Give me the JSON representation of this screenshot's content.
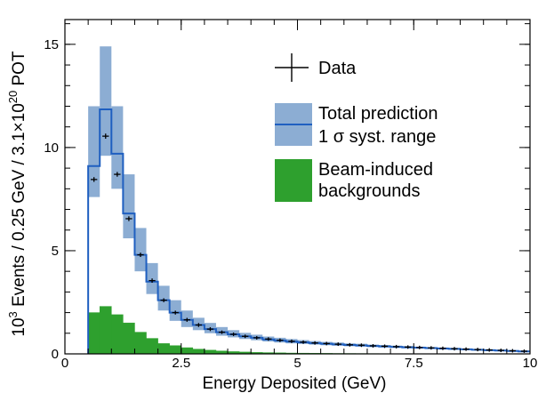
{
  "chart_data": {
    "type": "histogram",
    "xlabel": "Energy Deposited (GeV)",
    "ylabel": {
      "pre_exp": "10",
      "pre_sup": "3",
      "mid": " Events / 0.25 GeV / 3.1",
      "times": "×",
      "post_base": "10",
      "post_sup": "20",
      "post": " POT"
    },
    "xlim": [
      0,
      10
    ],
    "ylim": [
      0,
      16.2
    ],
    "x_ticks": [
      {
        "value": 0,
        "label": "0"
      },
      {
        "value": 2.5,
        "label": "2.5"
      },
      {
        "value": 5,
        "label": "5"
      },
      {
        "value": 7.5,
        "label": "7.5"
      },
      {
        "value": 10,
        "label": "10"
      }
    ],
    "y_ticks": [
      {
        "value": 0,
        "label": "0"
      },
      {
        "value": 5,
        "label": "5"
      },
      {
        "value": 10,
        "label": "10"
      },
      {
        "value": 15,
        "label": "15"
      }
    ],
    "bin_width": 0.25,
    "bin_edges_start": 0,
    "prediction_bins": [
      {
        "x0": 0.5,
        "x1": 0.75,
        "value": 9.1,
        "low": 7.6,
        "high": 12.0
      },
      {
        "x0": 0.75,
        "x1": 1.0,
        "value": 11.85,
        "low": 9.6,
        "high": 14.9
      },
      {
        "x0": 1.0,
        "x1": 1.25,
        "value": 9.7,
        "low": 8.0,
        "high": 12.0
      },
      {
        "x0": 1.25,
        "x1": 1.5,
        "value": 6.8,
        "low": 5.6,
        "high": 8.7
      },
      {
        "x0": 1.5,
        "x1": 1.75,
        "value": 4.8,
        "low": 4.0,
        "high": 6.1
      },
      {
        "x0": 1.75,
        "x1": 2.0,
        "value": 3.5,
        "low": 2.9,
        "high": 4.4
      },
      {
        "x0": 2.0,
        "x1": 2.25,
        "value": 2.6,
        "low": 2.1,
        "high": 3.3
      },
      {
        "x0": 2.25,
        "x1": 2.5,
        "value": 2.0,
        "low": 1.6,
        "high": 2.6
      },
      {
        "x0": 2.5,
        "x1": 2.75,
        "value": 1.65,
        "low": 1.3,
        "high": 2.1
      },
      {
        "x0": 2.75,
        "x1": 3.0,
        "value": 1.4,
        "low": 1.15,
        "high": 1.75
      },
      {
        "x0": 3.0,
        "x1": 3.25,
        "value": 1.2,
        "low": 1.0,
        "high": 1.5
      },
      {
        "x0": 3.25,
        "x1": 3.5,
        "value": 1.05,
        "low": 0.88,
        "high": 1.3
      },
      {
        "x0": 3.5,
        "x1": 3.75,
        "value": 0.95,
        "low": 0.8,
        "high": 1.15
      },
      {
        "x0": 3.75,
        "x1": 4.0,
        "value": 0.85,
        "low": 0.72,
        "high": 1.02
      },
      {
        "x0": 4.0,
        "x1": 4.25,
        "value": 0.78,
        "low": 0.66,
        "high": 0.93
      },
      {
        "x0": 4.25,
        "x1": 4.5,
        "value": 0.7,
        "low": 0.6,
        "high": 0.84
      },
      {
        "x0": 4.5,
        "x1": 4.75,
        "value": 0.65,
        "low": 0.55,
        "high": 0.78
      },
      {
        "x0": 4.75,
        "x1": 5.0,
        "value": 0.6,
        "low": 0.51,
        "high": 0.72
      },
      {
        "x0": 5.0,
        "x1": 5.25,
        "value": 0.56,
        "low": 0.48,
        "high": 0.67
      },
      {
        "x0": 5.25,
        "x1": 5.5,
        "value": 0.52,
        "low": 0.45,
        "high": 0.62
      },
      {
        "x0": 5.5,
        "x1": 5.75,
        "value": 0.49,
        "low": 0.42,
        "high": 0.58
      },
      {
        "x0": 5.75,
        "x1": 6.0,
        "value": 0.46,
        "low": 0.4,
        "high": 0.55
      },
      {
        "x0": 6.0,
        "x1": 6.25,
        "value": 0.43,
        "low": 0.37,
        "high": 0.51
      },
      {
        "x0": 6.25,
        "x1": 6.5,
        "value": 0.41,
        "low": 0.35,
        "high": 0.49
      },
      {
        "x0": 6.5,
        "x1": 6.75,
        "value": 0.38,
        "low": 0.33,
        "high": 0.45
      },
      {
        "x0": 6.75,
        "x1": 7.0,
        "value": 0.36,
        "low": 0.31,
        "high": 0.43
      },
      {
        "x0": 7.0,
        "x1": 7.25,
        "value": 0.34,
        "low": 0.29,
        "high": 0.4
      },
      {
        "x0": 7.25,
        "x1": 7.5,
        "value": 0.32,
        "low": 0.27,
        "high": 0.38
      },
      {
        "x0": 7.5,
        "x1": 7.75,
        "value": 0.3,
        "low": 0.26,
        "high": 0.35
      },
      {
        "x0": 7.75,
        "x1": 8.0,
        "value": 0.28,
        "low": 0.24,
        "high": 0.33
      },
      {
        "x0": 8.0,
        "x1": 8.25,
        "value": 0.26,
        "low": 0.22,
        "high": 0.31
      },
      {
        "x0": 8.25,
        "x1": 8.5,
        "value": 0.24,
        "low": 0.2,
        "high": 0.29
      },
      {
        "x0": 8.5,
        "x1": 8.75,
        "value": 0.22,
        "low": 0.19,
        "high": 0.26
      },
      {
        "x0": 8.75,
        "x1": 9.0,
        "value": 0.2,
        "low": 0.17,
        "high": 0.24
      },
      {
        "x0": 9.0,
        "x1": 9.25,
        "value": 0.18,
        "low": 0.15,
        "high": 0.22
      },
      {
        "x0": 9.25,
        "x1": 9.5,
        "value": 0.16,
        "low": 0.13,
        "high": 0.2
      },
      {
        "x0": 9.5,
        "x1": 9.75,
        "value": 0.14,
        "low": 0.11,
        "high": 0.18
      },
      {
        "x0": 9.75,
        "x1": 10.0,
        "value": 0.12,
        "low": 0.09,
        "high": 0.16
      }
    ],
    "background_bins": [
      {
        "x0": 0.5,
        "x1": 0.75,
        "value": 2.0
      },
      {
        "x0": 0.75,
        "x1": 1.0,
        "value": 2.3
      },
      {
        "x0": 1.0,
        "x1": 1.25,
        "value": 1.9
      },
      {
        "x0": 1.25,
        "x1": 1.5,
        "value": 1.5
      },
      {
        "x0": 1.5,
        "x1": 1.75,
        "value": 1.05
      },
      {
        "x0": 1.75,
        "x1": 2.0,
        "value": 0.75
      },
      {
        "x0": 2.0,
        "x1": 2.25,
        "value": 0.5
      },
      {
        "x0": 2.25,
        "x1": 2.5,
        "value": 0.4
      },
      {
        "x0": 2.5,
        "x1": 2.75,
        "value": 0.3
      },
      {
        "x0": 2.75,
        "x1": 3.0,
        "value": 0.23
      },
      {
        "x0": 3.0,
        "x1": 3.25,
        "value": 0.18
      },
      {
        "x0": 3.25,
        "x1": 3.5,
        "value": 0.14
      },
      {
        "x0": 3.5,
        "x1": 3.75,
        "value": 0.11
      },
      {
        "x0": 3.75,
        "x1": 4.0,
        "value": 0.09
      },
      {
        "x0": 4.0,
        "x1": 4.25,
        "value": 0.07
      },
      {
        "x0": 4.25,
        "x1": 4.5,
        "value": 0.06
      },
      {
        "x0": 4.5,
        "x1": 4.75,
        "value": 0.05
      },
      {
        "x0": 4.75,
        "x1": 5.0,
        "value": 0.04
      },
      {
        "x0": 5.0,
        "x1": 5.25,
        "value": 0.035
      },
      {
        "x0": 5.25,
        "x1": 5.5,
        "value": 0.03
      },
      {
        "x0": 5.5,
        "x1": 5.75,
        "value": 0.025
      },
      {
        "x0": 5.75,
        "x1": 6.0,
        "value": 0.02
      },
      {
        "x0": 6.0,
        "x1": 6.25,
        "value": 0.018
      },
      {
        "x0": 6.25,
        "x1": 6.5,
        "value": 0.015
      },
      {
        "x0": 6.5,
        "x1": 6.75,
        "value": 0.013
      },
      {
        "x0": 6.75,
        "x1": 7.0,
        "value": 0.011
      },
      {
        "x0": 7.0,
        "x1": 7.25,
        "value": 0.01
      },
      {
        "x0": 7.25,
        "x1": 7.5,
        "value": 0.009
      },
      {
        "x0": 7.5,
        "x1": 7.75,
        "value": 0.008
      },
      {
        "x0": 7.75,
        "x1": 8.0,
        "value": 0.007
      },
      {
        "x0": 8.0,
        "x1": 8.25,
        "value": 0.006
      },
      {
        "x0": 8.25,
        "x1": 8.5,
        "value": 0.005
      },
      {
        "x0": 8.5,
        "x1": 8.75,
        "value": 0.005
      },
      {
        "x0": 8.75,
        "x1": 9.0,
        "value": 0.004
      },
      {
        "x0": 9.0,
        "x1": 9.25,
        "value": 0.004
      },
      {
        "x0": 9.25,
        "x1": 9.5,
        "value": 0.003
      },
      {
        "x0": 9.5,
        "x1": 9.75,
        "value": 0.003
      },
      {
        "x0": 9.75,
        "x1": 10.0,
        "value": 0.003
      }
    ],
    "data_points": [
      {
        "x": 0.625,
        "y": 8.45,
        "yerr": 0.05
      },
      {
        "x": 0.875,
        "y": 10.55,
        "yerr": 0.06
      },
      {
        "x": 1.125,
        "y": 8.7,
        "yerr": 0.05
      },
      {
        "x": 1.375,
        "y": 6.55,
        "yerr": 0.05
      },
      {
        "x": 1.625,
        "y": 4.8,
        "yerr": 0.04
      },
      {
        "x": 1.875,
        "y": 3.55,
        "yerr": 0.04
      },
      {
        "x": 2.125,
        "y": 2.6,
        "yerr": 0.03
      },
      {
        "x": 2.375,
        "y": 2.0,
        "yerr": 0.03
      },
      {
        "x": 2.625,
        "y": 1.65,
        "yerr": 0.03
      },
      {
        "x": 2.875,
        "y": 1.4,
        "yerr": 0.03
      },
      {
        "x": 3.125,
        "y": 1.2,
        "yerr": 0.03
      },
      {
        "x": 3.375,
        "y": 1.05,
        "yerr": 0.02
      },
      {
        "x": 3.625,
        "y": 0.95,
        "yerr": 0.02
      },
      {
        "x": 3.875,
        "y": 0.85,
        "yerr": 0.02
      },
      {
        "x": 4.125,
        "y": 0.78,
        "yerr": 0.02
      },
      {
        "x": 4.375,
        "y": 0.72,
        "yerr": 0.02
      },
      {
        "x": 4.625,
        "y": 0.66,
        "yerr": 0.02
      },
      {
        "x": 4.875,
        "y": 0.61,
        "yerr": 0.02
      },
      {
        "x": 5.125,
        "y": 0.57,
        "yerr": 0.02
      },
      {
        "x": 5.375,
        "y": 0.53,
        "yerr": 0.02
      },
      {
        "x": 5.625,
        "y": 0.5,
        "yerr": 0.02
      },
      {
        "x": 5.875,
        "y": 0.47,
        "yerr": 0.02
      },
      {
        "x": 6.125,
        "y": 0.44,
        "yerr": 0.02
      },
      {
        "x": 6.375,
        "y": 0.42,
        "yerr": 0.02
      },
      {
        "x": 6.625,
        "y": 0.39,
        "yerr": 0.02
      },
      {
        "x": 6.875,
        "y": 0.37,
        "yerr": 0.02
      },
      {
        "x": 7.125,
        "y": 0.35,
        "yerr": 0.02
      },
      {
        "x": 7.375,
        "y": 0.33,
        "yerr": 0.02
      },
      {
        "x": 7.625,
        "y": 0.31,
        "yerr": 0.02
      },
      {
        "x": 7.875,
        "y": 0.29,
        "yerr": 0.02
      },
      {
        "x": 8.125,
        "y": 0.27,
        "yerr": 0.02
      },
      {
        "x": 8.375,
        "y": 0.25,
        "yerr": 0.02
      },
      {
        "x": 8.625,
        "y": 0.23,
        "yerr": 0.02
      },
      {
        "x": 8.875,
        "y": 0.21,
        "yerr": 0.02
      },
      {
        "x": 9.125,
        "y": 0.19,
        "yerr": 0.02
      },
      {
        "x": 9.375,
        "y": 0.17,
        "yerr": 0.02
      },
      {
        "x": 9.625,
        "y": 0.15,
        "yerr": 0.02
      },
      {
        "x": 9.875,
        "y": 0.13,
        "yerr": 0.02
      }
    ],
    "legend": {
      "placement": "top-right",
      "entries": {
        "data": "Data",
        "total_line1": "Total prediction",
        "total_line2_pre": "1 ",
        "total_line2_sigma": "σ",
        "total_line2_post": " syst. range",
        "bkg_line1": "Beam-induced",
        "bkg_line2": "backgrounds"
      }
    },
    "colors": {
      "prediction_line": "#1f5fc0",
      "syst_band": "#8cadd3",
      "background_fill": "#2ea02e",
      "background_stroke": "#1f7f1f",
      "data": "#000000",
      "axes": "#000000"
    },
    "grid": false
  }
}
